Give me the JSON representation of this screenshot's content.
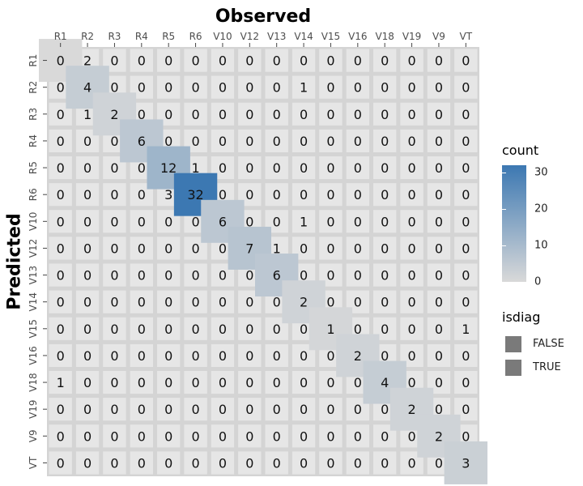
{
  "chart_data": {
    "type": "heatmap",
    "xlabel": "Observed",
    "ylabel": "Predicted",
    "x_categories": [
      "R1",
      "R2",
      "R3",
      "R4",
      "R5",
      "R6",
      "V10",
      "V12",
      "V13",
      "V14",
      "V15",
      "V16",
      "V18",
      "V19",
      "V9",
      "VT"
    ],
    "y_categories": [
      "R1",
      "R2",
      "R3",
      "R4",
      "R5",
      "R6",
      "V10",
      "V12",
      "V13",
      "V14",
      "V15",
      "V16",
      "V18",
      "V19",
      "V9",
      "VT"
    ],
    "values": [
      [
        0,
        2,
        0,
        0,
        0,
        0,
        0,
        0,
        0,
        0,
        0,
        0,
        0,
        0,
        0,
        0
      ],
      [
        0,
        4,
        0,
        0,
        0,
        0,
        0,
        0,
        0,
        1,
        0,
        0,
        0,
        0,
        0,
        0
      ],
      [
        0,
        1,
        2,
        0,
        0,
        0,
        0,
        0,
        0,
        0,
        0,
        0,
        0,
        0,
        0,
        0
      ],
      [
        0,
        0,
        0,
        6,
        0,
        0,
        0,
        0,
        0,
        0,
        0,
        0,
        0,
        0,
        0,
        0
      ],
      [
        0,
        0,
        0,
        0,
        12,
        1,
        0,
        0,
        0,
        0,
        0,
        0,
        0,
        0,
        0,
        0
      ],
      [
        0,
        0,
        0,
        0,
        3,
        32,
        0,
        0,
        0,
        0,
        0,
        0,
        0,
        0,
        0,
        0
      ],
      [
        0,
        0,
        0,
        0,
        0,
        0,
        6,
        0,
        0,
        1,
        0,
        0,
        0,
        0,
        0,
        0
      ],
      [
        0,
        0,
        0,
        0,
        0,
        0,
        0,
        7,
        1,
        0,
        0,
        0,
        0,
        0,
        0,
        0
      ],
      [
        0,
        0,
        0,
        0,
        0,
        0,
        0,
        0,
        6,
        0,
        0,
        0,
        0,
        0,
        0,
        0
      ],
      [
        0,
        0,
        0,
        0,
        0,
        0,
        0,
        0,
        0,
        2,
        0,
        0,
        0,
        0,
        0,
        0
      ],
      [
        0,
        0,
        0,
        0,
        0,
        0,
        0,
        0,
        0,
        0,
        1,
        0,
        0,
        0,
        0,
        1
      ],
      [
        0,
        0,
        0,
        0,
        0,
        0,
        0,
        0,
        0,
        0,
        0,
        2,
        0,
        0,
        0,
        0
      ],
      [
        1,
        0,
        0,
        0,
        0,
        0,
        0,
        0,
        0,
        0,
        0,
        0,
        4,
        0,
        0,
        0
      ],
      [
        0,
        0,
        0,
        0,
        0,
        0,
        0,
        0,
        0,
        0,
        0,
        0,
        0,
        2,
        0,
        0
      ],
      [
        0,
        0,
        0,
        0,
        0,
        0,
        0,
        0,
        0,
        0,
        0,
        0,
        0,
        0,
        2,
        0
      ],
      [
        0,
        0,
        0,
        0,
        0,
        0,
        0,
        0,
        0,
        0,
        0,
        0,
        0,
        0,
        0,
        3
      ]
    ],
    "fill_legend": {
      "title": "count",
      "ticks": [
        0,
        10,
        20,
        30
      ],
      "range": [
        0,
        32
      ],
      "low_color": "#d9d9d9",
      "high_color": "#3c78b2"
    },
    "size_legend": {
      "title": "isdiag",
      "entries": [
        "FALSE",
        "TRUE"
      ]
    },
    "panel_color": "#d4d4d4",
    "offdiag_tile_color": "#e6e6e6",
    "grid": true,
    "legend_position": "right"
  }
}
